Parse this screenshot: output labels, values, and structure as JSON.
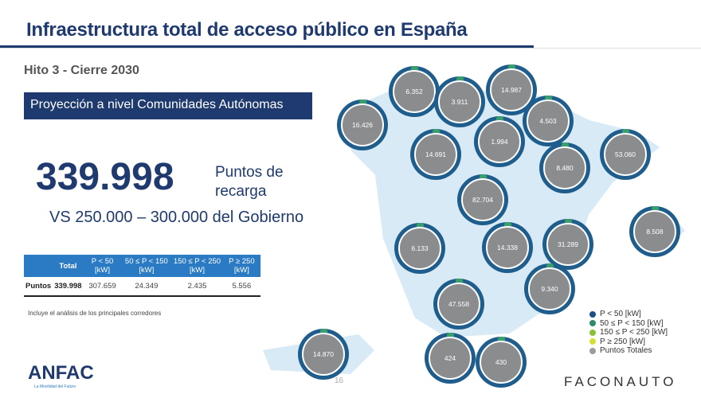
{
  "title": "Infraestructura total de acceso público en España",
  "subtitle": "Hito 3 - Cierre 2030",
  "banner": "Proyección a nivel Comunidades Autónomas",
  "total": "339.998",
  "total_label": "Puntos de recarga",
  "comparison": "VS 250.000 – 300.000 del Gobierno",
  "table": {
    "headers": [
      "",
      "Total",
      "P < 50 [kW]",
      "50 ≤ P < 150 [kW]",
      "150 ≤ P < 250 [kW]",
      "P ≥ 250 [kW]"
    ],
    "row": [
      "Puntos",
      "339.998",
      "307.659",
      "24.349",
      "2.435",
      "5.556"
    ]
  },
  "note": "Incluye el análisis de los principales corredores",
  "legend": [
    {
      "label": "P < 50 [kW]",
      "color": "#1e4f86"
    },
    {
      "label": "50 ≤ P < 150 [kW]",
      "color": "#2e8b6a"
    },
    {
      "label": "150 ≤ P < 250 [kW]",
      "color": "#8bbf3a"
    },
    {
      "label": "P ≥ 250 [kW]",
      "color": "#d4e03a"
    },
    {
      "label": "Puntos Totales",
      "color": "#9a9c9e"
    }
  ],
  "regions": [
    "6.352",
    "3.911",
    "14.987",
    "16.426",
    "4.503",
    "1.994",
    "14.691",
    "53.060",
    "8.480",
    "82.704",
    "8.508",
    "6.133",
    "14.338",
    "31.289",
    "9.340",
    "47.558",
    "14.870",
    "424",
    "430"
  ],
  "page": "16",
  "logo_left": "ANFAC",
  "logo_left_tag": "La Movilidad del Futuro",
  "logo_right": "FACONAUTO"
}
